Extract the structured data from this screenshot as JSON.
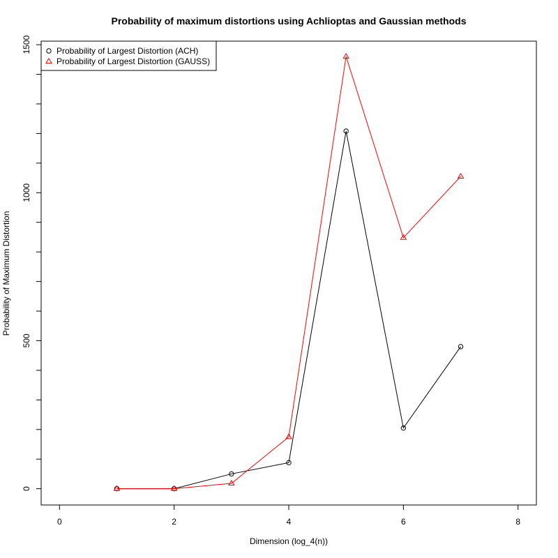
{
  "chart_data": {
    "type": "line",
    "title": "Probability of maximum distortions using Achlioptas and Gaussian methods",
    "xlabel": "Dimension (log_4(n))",
    "ylabel": "Probability of Maximum Distortion",
    "xlim": [
      -0.32,
      8.32
    ],
    "ylim": [
      -55,
      1512
    ],
    "xticks": [
      0,
      2,
      4,
      6,
      8
    ],
    "yticks": [
      0,
      500,
      1000,
      1500
    ],
    "grid": false,
    "legend_position": "top-left",
    "series": [
      {
        "name": "Probability of Largest Distortion (ACH)",
        "color": "#000000",
        "marker": "circle",
        "x": [
          1,
          2,
          3,
          4,
          5,
          6,
          7
        ],
        "y": [
          0,
          0,
          50,
          88,
          1208,
          205,
          480
        ]
      },
      {
        "name": "Probability of Largest Distortion (GAUSS)",
        "color": "#ff0000",
        "marker": "triangle",
        "x": [
          1,
          2,
          3,
          4,
          5,
          6,
          7
        ],
        "y": [
          0,
          0,
          18,
          175,
          1460,
          848,
          1055
        ]
      }
    ]
  }
}
